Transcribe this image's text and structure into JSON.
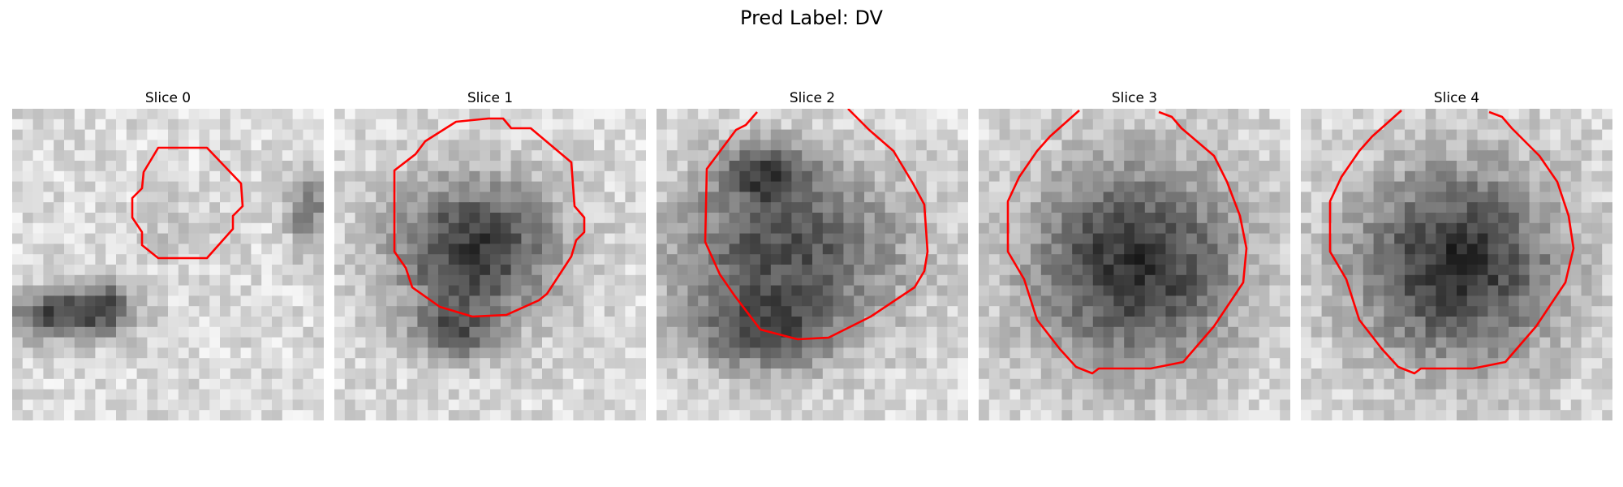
{
  "figure": {
    "title": "Pred Label: DV"
  },
  "panels": [
    {
      "title": "Slice 0"
    },
    {
      "title": "Slice 1"
    },
    {
      "title": "Slice 2"
    },
    {
      "title": "Slice 3"
    },
    {
      "title": "Slice 4"
    }
  ],
  "colors": {
    "contour": "#ff0000",
    "background": "#ffffff"
  }
}
